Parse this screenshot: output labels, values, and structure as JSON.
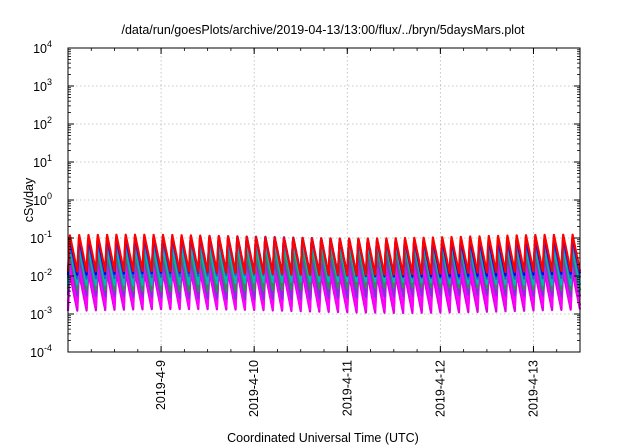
{
  "chart_data": {
    "type": "line",
    "title": "/data/run/goesPlots/archive/2019-04-13/13:00/flux/../bryn/5daysMars.plot",
    "xlabel": "Coordinated Universal Time (UTC)",
    "ylabel": "cSv/day",
    "y_scale": "log",
    "ylim_exponent": [
      -4,
      4
    ],
    "y_ticks": [
      {
        "base": "10",
        "exp": "4",
        "value": 10000
      },
      {
        "base": "10",
        "exp": "3",
        "value": 1000
      },
      {
        "base": "10",
        "exp": "2",
        "value": 100
      },
      {
        "base": "10",
        "exp": "1",
        "value": 10
      },
      {
        "base": "10",
        "exp": "0",
        "value": 1
      },
      {
        "base": "10",
        "exp": "-1",
        "value": 0.1
      },
      {
        "base": "10",
        "exp": "-2",
        "value": 0.01
      },
      {
        "base": "10",
        "exp": "-3",
        "value": 0.001
      },
      {
        "base": "10",
        "exp": "-4",
        "value": 0.0001
      }
    ],
    "xlim_days": [
      0,
      5.5
    ],
    "x_ticks": [
      {
        "label": "2019-4-9",
        "day": 1.0
      },
      {
        "label": "2019-4-10",
        "day": 2.0
      },
      {
        "label": "2019-4-11",
        "day": 3.0
      },
      {
        "label": "2019-4-12",
        "day": 4.0
      },
      {
        "label": "2019-4-13",
        "day": 5.0
      }
    ],
    "grid": true,
    "legend": "none",
    "oscillation_period_days": 0.1,
    "series": [
      {
        "color": "#ff0000",
        "peak": 0.115,
        "trough": 0.012
      },
      {
        "color": "#0000ff",
        "peak": 0.105,
        "trough": 0.011
      },
      {
        "color": "#2e5bd8",
        "peak": 0.095,
        "trough": 0.0095
      },
      {
        "color": "#00b8b8",
        "peak": 0.07,
        "trough": 0.0065
      },
      {
        "color": "#2f8f4f",
        "peak": 0.05,
        "trough": 0.0045
      },
      {
        "color": "#8a2be2",
        "peak": 0.032,
        "trough": 0.0028
      },
      {
        "color": "#ff00ff",
        "peak": 0.02,
        "trough": 0.0015
      },
      {
        "color": "#e000e0",
        "peak": 0.012,
        "trough": 0.0012
      }
    ]
  }
}
